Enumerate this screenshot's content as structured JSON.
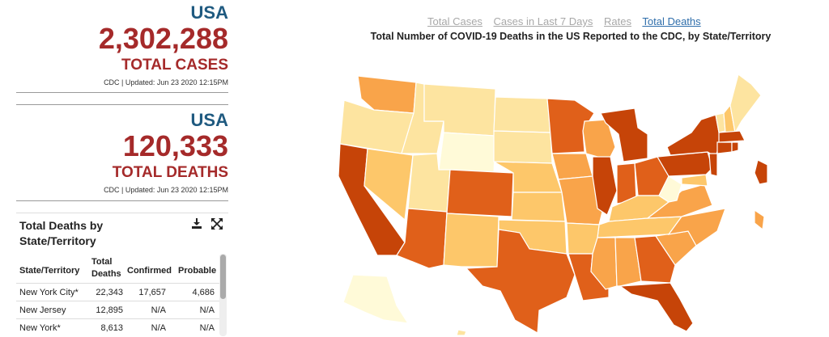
{
  "cases_card": {
    "region": "USA",
    "value": "2,302,288",
    "label": "TOTAL CASES",
    "updated": "CDC | Updated: Jun 23 2020 12:15PM"
  },
  "deaths_card": {
    "region": "USA",
    "value": "120,333",
    "label": "TOTAL DEATHS",
    "updated": "CDC | Updated: Jun 23 2020 12:15PM"
  },
  "table": {
    "title": "Total Deaths by State/Territory",
    "download_icon": "download-icon",
    "expand_icon": "expand-icon",
    "headers": {
      "state": "State/Territory",
      "total": "Total Deaths",
      "confirmed": "Confirmed",
      "probable": "Probable"
    },
    "rows": [
      {
        "state": "New York City*",
        "total": "22,343",
        "confirmed": "17,657",
        "probable": "4,686"
      },
      {
        "state": "New Jersey",
        "total": "12,895",
        "confirmed": "N/A",
        "probable": "N/A"
      },
      {
        "state": "New York*",
        "total": "8,613",
        "confirmed": "N/A",
        "probable": "N/A"
      }
    ]
  },
  "tabs": [
    {
      "label": "Total Cases",
      "active": false
    },
    {
      "label": "Cases in Last 7 Days",
      "active": false
    },
    {
      "label": "Rates",
      "active": false
    },
    {
      "label": "Total Deaths",
      "active": true
    }
  ],
  "map": {
    "title": "Total Number of COVID-19 Deaths in the US Reported to the CDC, by State/Territory",
    "colors": {
      "lightest": "#fffad8",
      "light": "#fde4a0",
      "mid_light": "#fdc76a",
      "mid": "#f9a44a",
      "mid_dark": "#f0822a",
      "dark": "#e0601a",
      "darkest": "#c64408"
    }
  }
}
